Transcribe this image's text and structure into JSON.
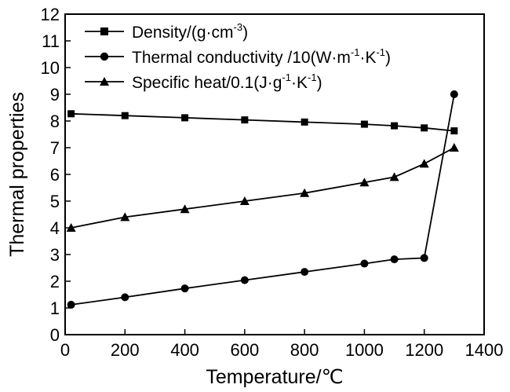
{
  "chart_data": {
    "type": "line",
    "title": "",
    "xlabel": "Temperature/℃",
    "ylabel": "Thermal properties",
    "xlim": [
      0,
      1400
    ],
    "ylim": [
      0,
      12
    ],
    "xticks": [
      0,
      200,
      400,
      600,
      800,
      1000,
      1200,
      1400
    ],
    "yticks": [
      0,
      1,
      2,
      3,
      4,
      5,
      6,
      7,
      8,
      9,
      10,
      11,
      12
    ],
    "grid": false,
    "legend_position": "top-left",
    "line_color": "#000000",
    "series": [
      {
        "name": "Density/(g·cm-3)",
        "marker": "square",
        "x": [
          20,
          200,
          400,
          600,
          800,
          1000,
          1100,
          1200,
          1300
        ],
        "y": [
          8.27,
          8.2,
          8.12,
          8.04,
          7.96,
          7.88,
          7.82,
          7.74,
          7.63
        ]
      },
      {
        "name": "Thermal conductivity /10(W·m-1·K-1)",
        "marker": "circle",
        "x": [
          20,
          200,
          400,
          600,
          800,
          1000,
          1100,
          1200,
          1300
        ],
        "y": [
          1.12,
          1.4,
          1.73,
          2.04,
          2.35,
          2.66,
          2.82,
          2.87,
          9.0
        ]
      },
      {
        "name": "Specific heat/0.1(J·g-1·K-1)",
        "marker": "triangle",
        "x": [
          20,
          200,
          400,
          600,
          800,
          1000,
          1100,
          1200,
          1300
        ],
        "y": [
          4.0,
          4.4,
          4.7,
          5.0,
          5.3,
          5.7,
          5.9,
          6.4,
          7.0
        ]
      }
    ]
  },
  "legend": [
    {
      "marker": "square",
      "base": "Density/(g·cm",
      "sup": "-3",
      "tail": ")"
    },
    {
      "marker": "circle",
      "base": "Thermal conductivity /10(W·m",
      "sup": "-1",
      "mid": "·K",
      "sup2": "-1",
      "tail": ")"
    },
    {
      "marker": "triangle",
      "base": "Specific heat/0.1(J·g",
      "sup": "-1",
      "mid": "·K",
      "sup2": "-1",
      "tail": ")"
    }
  ]
}
